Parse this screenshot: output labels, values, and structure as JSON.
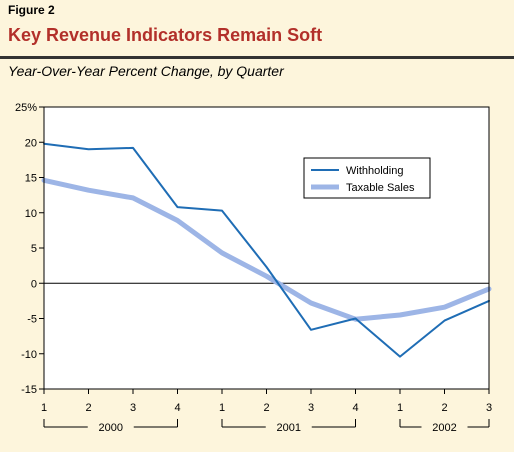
{
  "header": {
    "figure_label": "Figure 2",
    "title": "Key Revenue Indicators Remain Soft"
  },
  "chart_data": {
    "type": "line",
    "subtitle": "Year-Over-Year Percent Change, by Quarter",
    "x": [
      "1",
      "2",
      "3",
      "4",
      "1",
      "2",
      "3",
      "4",
      "1",
      "2",
      "3"
    ],
    "year_groups": [
      {
        "label": "2000",
        "start": 0,
        "end": 3
      },
      {
        "label": "2001",
        "start": 4,
        "end": 7
      },
      {
        "label": "2002",
        "start": 8,
        "end": 10
      }
    ],
    "series": [
      {
        "name": "Withholding",
        "color": "#1F6DB5",
        "values": [
          19.8,
          19.0,
          19.2,
          10.8,
          10.3,
          2.3,
          -6.6,
          -5.0,
          -10.4,
          -5.3,
          -2.5
        ]
      },
      {
        "name": "Taxable Sales",
        "color": "#9DB5E6",
        "values": [
          14.6,
          13.2,
          12.1,
          8.9,
          4.3,
          1.0,
          -2.8,
          -5.1,
          -4.5,
          -3.4,
          -0.8
        ]
      }
    ],
    "ylim": [
      -15,
      25
    ],
    "ytick_values": [
      -15,
      -10,
      -5,
      0,
      5,
      10,
      15,
      20,
      25
    ],
    "ytick_labels": [
      "-15",
      "-10",
      "-5",
      "0",
      "5",
      "10",
      "15",
      "20",
      "25%"
    ],
    "legend_position": "right"
  }
}
